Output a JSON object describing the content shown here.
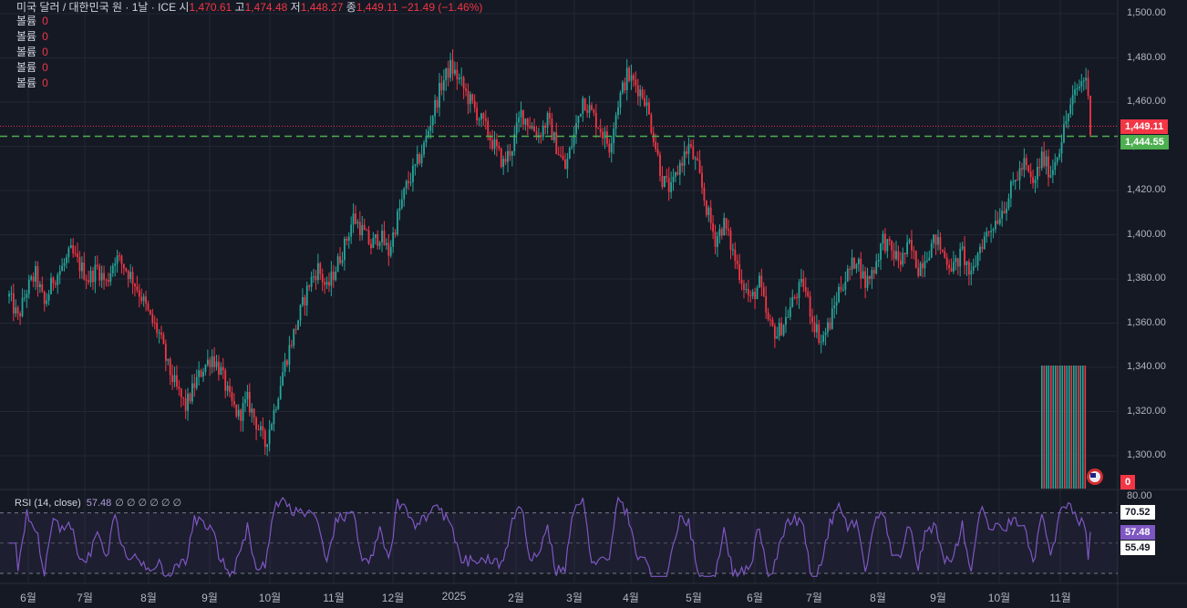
{
  "header": {
    "symbol": "미국 달러 / 대한민국 원 · 1날 · ICE",
    "open_label": "시",
    "open": "1,470.61",
    "high_label": "고",
    "high": "1,474.48",
    "low_label": "저",
    "low": "1,448.27",
    "close_label": "종",
    "close": "1,449.11",
    "change": "−21.49 (−1.46%)"
  },
  "volume_rows": [
    {
      "label": "볼륨",
      "value": "0"
    },
    {
      "label": "볼륨",
      "value": "0"
    },
    {
      "label": "볼륨",
      "value": "0"
    },
    {
      "label": "볼륨",
      "value": "0"
    },
    {
      "label": "볼륨",
      "value": "0"
    }
  ],
  "rsi_header": {
    "title": "RSI (14, close)",
    "value": "57.48",
    "extras": "∅ ∅ ∅ ∅ ∅ ∅"
  },
  "price_tags": {
    "last": "1,449.11",
    "line": "1,444.55",
    "volume": "0"
  },
  "rsi_tags": {
    "r1": "70.52",
    "r2": "57.48",
    "r3": "55.49"
  },
  "colors": {
    "up": "#26a69a",
    "down": "#f23645",
    "rsi": "#7e57c2",
    "background": "#151924",
    "dashed_line": "#4caf50"
  },
  "chart_data": {
    "type": "candlestick",
    "y_axis_ticks": [
      "1,500.00",
      "1,480.00",
      "1,460.00",
      "1,440.00",
      "1,420.00",
      "1,400.00",
      "1,380.00",
      "1,360.00",
      "1,340.00",
      "1,320.00",
      "1,300.00"
    ],
    "ylim": [
      1286,
      1510
    ],
    "x_axis_ticks": [
      "6월",
      "7월",
      "8월",
      "9월",
      "10월",
      "11월",
      "12월",
      "2025",
      "2월",
      "3월",
      "4월",
      "5월",
      "6월",
      "7월",
      "8월",
      "9월",
      "10월",
      "11월"
    ],
    "horizontal_line": 1444.55,
    "last_close": 1449.11,
    "close_path": [
      [
        0,
        1372
      ],
      [
        4,
        1362
      ],
      [
        8,
        1375
      ],
      [
        12,
        1382
      ],
      [
        16,
        1368
      ],
      [
        20,
        1380
      ],
      [
        24,
        1385
      ],
      [
        28,
        1392
      ],
      [
        32,
        1386
      ],
      [
        36,
        1380
      ],
      [
        40,
        1385
      ],
      [
        44,
        1378
      ],
      [
        48,
        1390
      ],
      [
        52,
        1386
      ],
      [
        56,
        1380
      ],
      [
        60,
        1372
      ],
      [
        64,
        1362
      ],
      [
        68,
        1355
      ],
      [
        72,
        1340
      ],
      [
        76,
        1330
      ],
      [
        80,
        1322
      ],
      [
        84,
        1332
      ],
      [
        88,
        1340
      ],
      [
        92,
        1345
      ],
      [
        96,
        1338
      ],
      [
        100,
        1325
      ],
      [
        104,
        1318
      ],
      [
        108,
        1325
      ],
      [
        112,
        1315
      ],
      [
        116,
        1305
      ],
      [
        120,
        1320
      ],
      [
        124,
        1338
      ],
      [
        128,
        1352
      ],
      [
        132,
        1365
      ],
      [
        136,
        1378
      ],
      [
        140,
        1385
      ],
      [
        144,
        1375
      ],
      [
        148,
        1385
      ],
      [
        152,
        1395
      ],
      [
        156,
        1408
      ],
      [
        160,
        1402
      ],
      [
        164,
        1395
      ],
      [
        168,
        1400
      ],
      [
        172,
        1392
      ],
      [
        176,
        1408
      ],
      [
        180,
        1422
      ],
      [
        184,
        1430
      ],
      [
        188,
        1440
      ],
      [
        192,
        1455
      ],
      [
        196,
        1468
      ],
      [
        200,
        1476
      ],
      [
        204,
        1470
      ],
      [
        208,
        1462
      ],
      [
        212,
        1455
      ],
      [
        216,
        1448
      ],
      [
        220,
        1440
      ],
      [
        224,
        1432
      ],
      [
        228,
        1440
      ],
      [
        232,
        1455
      ],
      [
        236,
        1450
      ],
      [
        240,
        1445
      ],
      [
        244,
        1452
      ],
      [
        248,
        1440
      ],
      [
        252,
        1430
      ],
      [
        256,
        1445
      ],
      [
        260,
        1462
      ],
      [
        264,
        1455
      ],
      [
        268,
        1448
      ],
      [
        272,
        1440
      ],
      [
        276,
        1460
      ],
      [
        280,
        1472
      ],
      [
        284,
        1468
      ],
      [
        288,
        1462
      ],
      [
        292,
        1445
      ],
      [
        296,
        1425
      ],
      [
        300,
        1420
      ],
      [
        304,
        1432
      ],
      [
        308,
        1440
      ],
      [
        312,
        1430
      ],
      [
        316,
        1412
      ],
      [
        320,
        1398
      ],
      [
        324,
        1405
      ],
      [
        328,
        1392
      ],
      [
        332,
        1380
      ],
      [
        336,
        1370
      ],
      [
        340,
        1378
      ],
      [
        344,
        1360
      ],
      [
        348,
        1355
      ],
      [
        352,
        1362
      ],
      [
        356,
        1372
      ],
      [
        360,
        1378
      ],
      [
        364,
        1362
      ],
      [
        368,
        1352
      ],
      [
        372,
        1360
      ],
      [
        376,
        1375
      ],
      [
        380,
        1382
      ],
      [
        384,
        1390
      ],
      [
        388,
        1378
      ],
      [
        392,
        1385
      ],
      [
        396,
        1398
      ],
      [
        400,
        1392
      ],
      [
        404,
        1388
      ],
      [
        408,
        1395
      ],
      [
        412,
        1385
      ],
      [
        416,
        1392
      ],
      [
        420,
        1398
      ],
      [
        424,
        1390
      ],
      [
        428,
        1385
      ],
      [
        432,
        1392
      ],
      [
        436,
        1380
      ],
      [
        440,
        1395
      ],
      [
        444,
        1402
      ],
      [
        448,
        1408
      ],
      [
        452,
        1415
      ],
      [
        456,
        1425
      ],
      [
        460,
        1432
      ],
      [
        464,
        1422
      ],
      [
        468,
        1435
      ],
      [
        472,
        1428
      ],
      [
        476,
        1440
      ],
      [
        480,
        1455
      ],
      [
        484,
        1466
      ],
      [
        488,
        1472
      ],
      [
        490,
        1449
      ]
    ],
    "volume_histogram_value": 0,
    "rsi": {
      "period": 14,
      "last": 57.48,
      "levels": [
        70,
        30
      ],
      "axis_tick": "80.00"
    }
  }
}
